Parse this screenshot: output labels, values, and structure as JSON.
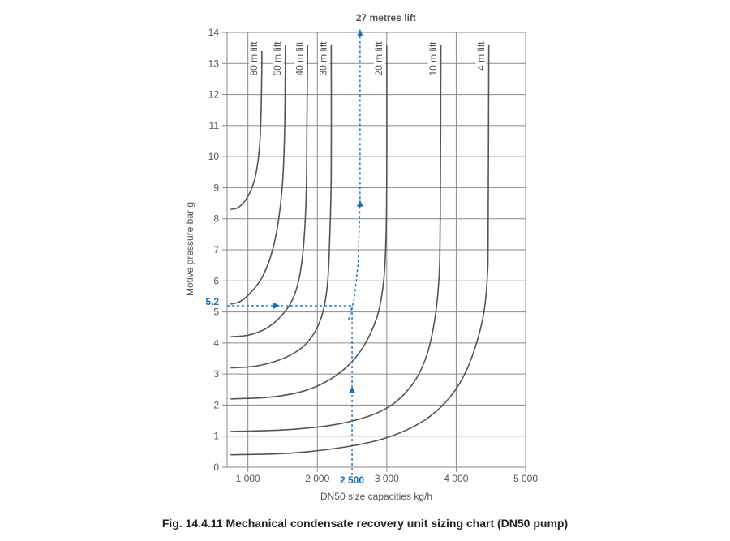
{
  "caption": "Fig. 14.4.11 Mechanical condensate recovery unit sizing chart (DN50 pump)",
  "chart_data": {
    "type": "line",
    "title": "",
    "xlabel": "DN50 size capacities kg/h",
    "ylabel": "Motive pressure bar g",
    "xlim": [
      700,
      5000
    ],
    "ylim": [
      0,
      14
    ],
    "x_ticks": [
      {
        "value": 1000,
        "label": "1 000"
      },
      {
        "value": 2000,
        "label": "2 000"
      },
      {
        "value": 3000,
        "label": "3 000"
      },
      {
        "value": 4000,
        "label": "4 000"
      },
      {
        "value": 5000,
        "label": "5 000"
      }
    ],
    "y_ticks": [
      0,
      1,
      2,
      3,
      4,
      5,
      6,
      7,
      8,
      9,
      10,
      11,
      12,
      13,
      14
    ],
    "grid": true,
    "colors": {
      "curves": "#555555",
      "example": "#1a6fb0",
      "grid": "#8a8a8a",
      "text": "#555555"
    },
    "series": [
      {
        "name": "80 m lift",
        "points": [
          [
            750,
            8.3
          ],
          [
            850,
            8.35
          ],
          [
            950,
            8.55
          ],
          [
            1050,
            8.95
          ],
          [
            1120,
            9.5
          ],
          [
            1170,
            10.4
          ],
          [
            1190,
            11.5
          ],
          [
            1200,
            12.9
          ],
          [
            1200,
            13.4
          ]
        ]
      },
      {
        "name": "50 m lift",
        "points": [
          [
            750,
            5.25
          ],
          [
            900,
            5.35
          ],
          [
            1050,
            5.65
          ],
          [
            1200,
            6.1
          ],
          [
            1330,
            6.8
          ],
          [
            1430,
            7.8
          ],
          [
            1500,
            9.2
          ],
          [
            1530,
            11
          ],
          [
            1540,
            13.6
          ]
        ]
      },
      {
        "name": "40 m lift",
        "points": [
          [
            750,
            4.2
          ],
          [
            1000,
            4.25
          ],
          [
            1250,
            4.45
          ],
          [
            1450,
            4.8
          ],
          [
            1620,
            5.3
          ],
          [
            1730,
            6
          ],
          [
            1800,
            7.1
          ],
          [
            1840,
            8.8
          ],
          [
            1850,
            11
          ],
          [
            1860,
            13.6
          ]
        ]
      },
      {
        "name": "30 m lift",
        "points": [
          [
            750,
            3.2
          ],
          [
            1100,
            3.25
          ],
          [
            1450,
            3.45
          ],
          [
            1750,
            3.8
          ],
          [
            1950,
            4.3
          ],
          [
            2080,
            5
          ],
          [
            2150,
            6
          ],
          [
            2180,
            7.5
          ],
          [
            2200,
            9.5
          ],
          [
            2200,
            13.6
          ]
        ]
      },
      {
        "name": "20 m lift",
        "points": [
          [
            750,
            2.2
          ],
          [
            1300,
            2.25
          ],
          [
            1800,
            2.45
          ],
          [
            2200,
            2.85
          ],
          [
            2500,
            3.4
          ],
          [
            2720,
            4.1
          ],
          [
            2880,
            5
          ],
          [
            2960,
            6.1
          ],
          [
            2990,
            7.5
          ],
          [
            3000,
            9.5
          ],
          [
            3000,
            13.6
          ]
        ]
      },
      {
        "name": "10 m lift",
        "points": [
          [
            750,
            1.15
          ],
          [
            1500,
            1.2
          ],
          [
            2200,
            1.35
          ],
          [
            2750,
            1.65
          ],
          [
            3100,
            2.05
          ],
          [
            3380,
            2.7
          ],
          [
            3560,
            3.5
          ],
          [
            3680,
            4.6
          ],
          [
            3750,
            6
          ],
          [
            3770,
            8
          ],
          [
            3780,
            13.6
          ]
        ]
      },
      {
        "name": "4 m lift",
        "points": [
          [
            750,
            0.4
          ],
          [
            1600,
            0.45
          ],
          [
            2400,
            0.65
          ],
          [
            3000,
            0.95
          ],
          [
            3500,
            1.45
          ],
          [
            3850,
            2.1
          ],
          [
            4100,
            2.9
          ],
          [
            4280,
            3.9
          ],
          [
            4400,
            5
          ],
          [
            4450,
            6.2
          ],
          [
            4460,
            7.5
          ],
          [
            4470,
            13.6
          ]
        ]
      }
    ],
    "example": {
      "pressure_label": "5.2",
      "capacity_label": "2 500",
      "lift_label": "27 metres lift",
      "pressure": 5.2,
      "capacity": 2500,
      "path": [
        [
          2450,
          4.75
        ],
        [
          2530,
          5.4
        ],
        [
          2585,
          6.5
        ],
        [
          2615,
          8.5
        ],
        [
          2615,
          14
        ]
      ]
    }
  }
}
